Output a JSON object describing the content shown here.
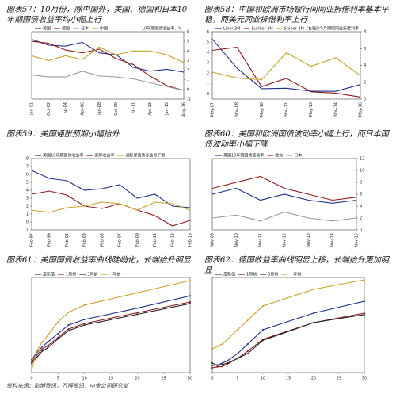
{
  "chart_data": [
    {
      "type": "line",
      "title": "图表57：10月份，除中国外，美国、德国和日本10年期国债收益率均小幅上行",
      "y_label": "10年期国债收益率，%",
      "categories": [
        "Jan-01",
        "Oct-02",
        "Jul-04",
        "Apr-06",
        "Jan-08",
        "Oct-09",
        "Jul-11",
        "Apr-13",
        "Jan-15",
        "Aug-16"
      ],
      "series": [
        {
          "name": "美国",
          "color": "#1f2f8a",
          "values": [
            5.2,
            4.6,
            4.5,
            4.9,
            3.8,
            3.6,
            2.3,
            1.9,
            2.1,
            1.8
          ]
        },
        {
          "name": "德国",
          "color": "#8b1a1a",
          "values": [
            5.0,
            4.8,
            4.1,
            3.8,
            4.2,
            3.2,
            2.6,
            1.4,
            0.4,
            -0.1
          ]
        },
        {
          "name": "日本",
          "color": "#9a9a9a",
          "values": [
            1.5,
            1.3,
            1.3,
            1.9,
            1.4,
            1.3,
            1.1,
            0.7,
            0.3,
            -0.1
          ]
        },
        {
          "name": "中国",
          "color": "#c9a227",
          "values": [
            3.5,
            3.0,
            3.5,
            3.1,
            4.4,
            3.6,
            4.0,
            4.0,
            3.6,
            2.8
          ]
        }
      ],
      "ylim": [
        -1,
        6
      ],
      "yticks": [
        -1,
        0,
        1,
        2,
        3,
        4,
        5,
        6
      ]
    },
    {
      "type": "line",
      "title": "图表58：中国和欧洲市场银行间同业拆借利率基本平稳，而美元同业拆借利率上行",
      "y_label": "3个月期限同业拆借利率",
      "categories": [
        "May-07",
        "Nov-08",
        "May-10",
        "Nov-11",
        "May-13",
        "Nov-14",
        "May-16"
      ],
      "series": [
        {
          "name": "Libor 3M",
          "color": "#1f2f8a",
          "values": [
            5.3,
            2.5,
            0.5,
            0.55,
            0.27,
            0.25,
            0.9
          ]
        },
        {
          "name": "Euribor 3M",
          "color": "#8b1a1a",
          "values": [
            4.2,
            4.5,
            0.7,
            1.5,
            0.2,
            0.08,
            -0.3
          ]
        },
        {
          "name": "Shibor 3M（右轴）",
          "color": "#c9a227",
          "axis": "y2",
          "values": [
            3.2,
            2.5,
            2.3,
            5.5,
            3.9,
            4.9,
            2.8
          ]
        }
      ],
      "ylim": [
        -0.5,
        6
      ],
      "yticks": [
        0,
        1,
        2,
        3,
        4,
        5,
        6
      ],
      "y2lim": [
        0,
        8
      ],
      "y2ticks": [
        0,
        2,
        4,
        6,
        8
      ]
    },
    {
      "type": "line",
      "title": "图表59：美国通胀预期小幅抬升",
      "categories": [
        "Feb-97",
        "Feb-99",
        "Feb-01",
        "Feb-03",
        "Feb-05",
        "Feb-07",
        "Feb-09",
        "Feb-11",
        "Feb-13",
        "Feb-16"
      ],
      "series": [
        {
          "name": "美国10年期国债收益率",
          "color": "#1f2f8a",
          "values": [
            6.5,
            5.5,
            5.2,
            4.0,
            4.2,
            4.7,
            3.0,
            3.5,
            2.0,
            1.8
          ]
        },
        {
          "name": "实际收益率",
          "color": "#8b1a1a",
          "values": [
            3.5,
            3.9,
            3.4,
            2.0,
            1.7,
            2.3,
            1.5,
            0.8,
            -0.5,
            0.2
          ]
        },
        {
          "name": "通胀保值债券盈亏平衡",
          "color": "#c9a227",
          "values": [
            1.5,
            1.2,
            1.8,
            2.0,
            2.5,
            2.3,
            1.5,
            2.5,
            2.3,
            1.5
          ]
        }
      ],
      "ylim": [
        -1,
        8
      ],
      "yticks": [
        -1,
        0,
        1,
        2,
        3,
        4,
        5,
        6,
        7,
        8
      ]
    },
    {
      "type": "line",
      "title": "图表60：美国和欧洲国债波动率小幅上行，而日本国债波动率小幅下降",
      "categories": [
        "Nov-09",
        "Nov-10",
        "Nov-11",
        "Nov-12",
        "Nov-13",
        "Nov-14",
        "Nov-15"
      ],
      "series": [
        {
          "name": "美国10年期国债波动率",
          "color": "#1f2f8a",
          "values": [
            6,
            7,
            5,
            6,
            5,
            4.5,
            5
          ]
        },
        {
          "name": "欧洲",
          "color": "#8b1a1a",
          "values": [
            7,
            8,
            9,
            7,
            6,
            5,
            5.5
          ]
        },
        {
          "name": "日本",
          "color": "#9a9a9a",
          "values": [
            2,
            2.5,
            1.5,
            3,
            2,
            1.5,
            2
          ]
        }
      ],
      "ylim": [
        0,
        12
      ],
      "yticks": [
        0,
        2,
        4,
        6,
        8,
        10,
        12
      ]
    },
    {
      "type": "line",
      "title": "图表61：美国国债收益率曲线陡峭化，长端抬升明显",
      "x": [
        0,
        1,
        2,
        3,
        5,
        7,
        10,
        20,
        30
      ],
      "xlim": [
        0,
        30
      ],
      "xticks": [
        0,
        5,
        10,
        15,
        20,
        25,
        30
      ],
      "series": [
        {
          "name": "最新值",
          "color": "#1f2f8a",
          "values": [
            0.42,
            0.66,
            0.84,
            0.99,
            1.27,
            1.55,
            1.73,
            2.1,
            2.5
          ]
        },
        {
          "name": "1月前",
          "color": "#8b1a1a",
          "values": [
            0.35,
            0.58,
            0.77,
            0.87,
            1.15,
            1.42,
            1.6,
            1.95,
            2.3
          ]
        },
        {
          "name": "3月前",
          "color": "#222222",
          "values": [
            0.3,
            0.5,
            0.7,
            0.8,
            1.1,
            1.37,
            1.55,
            1.9,
            2.25
          ]
        },
        {
          "name": "一年前",
          "color": "#c9a227",
          "values": [
            0.1,
            0.7,
            1.0,
            1.2,
            1.65,
            1.97,
            2.2,
            2.6,
            3.0
          ]
        }
      ],
      "ylim": [
        0,
        3.1
      ]
    },
    {
      "type": "line",
      "title": "图表62：德国收益率曲线明显上移，长端抬升更加明显",
      "x": [
        0,
        1,
        2,
        3,
        5,
        7,
        10,
        20,
        30
      ],
      "xlim": [
        0,
        30
      ],
      "xticks": [
        0,
        5,
        10,
        15,
        20,
        25,
        30
      ],
      "series": [
        {
          "name": "最新值",
          "color": "#1f2f8a",
          "values": [
            -0.65,
            -0.64,
            -0.6,
            -0.55,
            -0.4,
            -0.2,
            0.1,
            0.45,
            0.7
          ]
        },
        {
          "name": "1月前",
          "color": "#8b1a1a",
          "values": [
            -0.7,
            -0.68,
            -0.67,
            -0.62,
            -0.5,
            -0.35,
            -0.1,
            0.25,
            0.45
          ]
        },
        {
          "name": "3月前",
          "color": "#222222",
          "values": [
            -0.6,
            -0.65,
            -0.63,
            -0.6,
            -0.5,
            -0.4,
            -0.12,
            0.25,
            0.42
          ]
        },
        {
          "name": "一年前",
          "color": "#c9a227",
          "values": [
            -0.3,
            -0.25,
            -0.2,
            -0.1,
            0.1,
            0.3,
            0.6,
            0.95,
            1.15
          ]
        }
      ],
      "ylim": [
        -0.8,
        1.2
      ]
    }
  ],
  "source": "资料来源：彭博资讯，万得资讯，中金公司研究部"
}
